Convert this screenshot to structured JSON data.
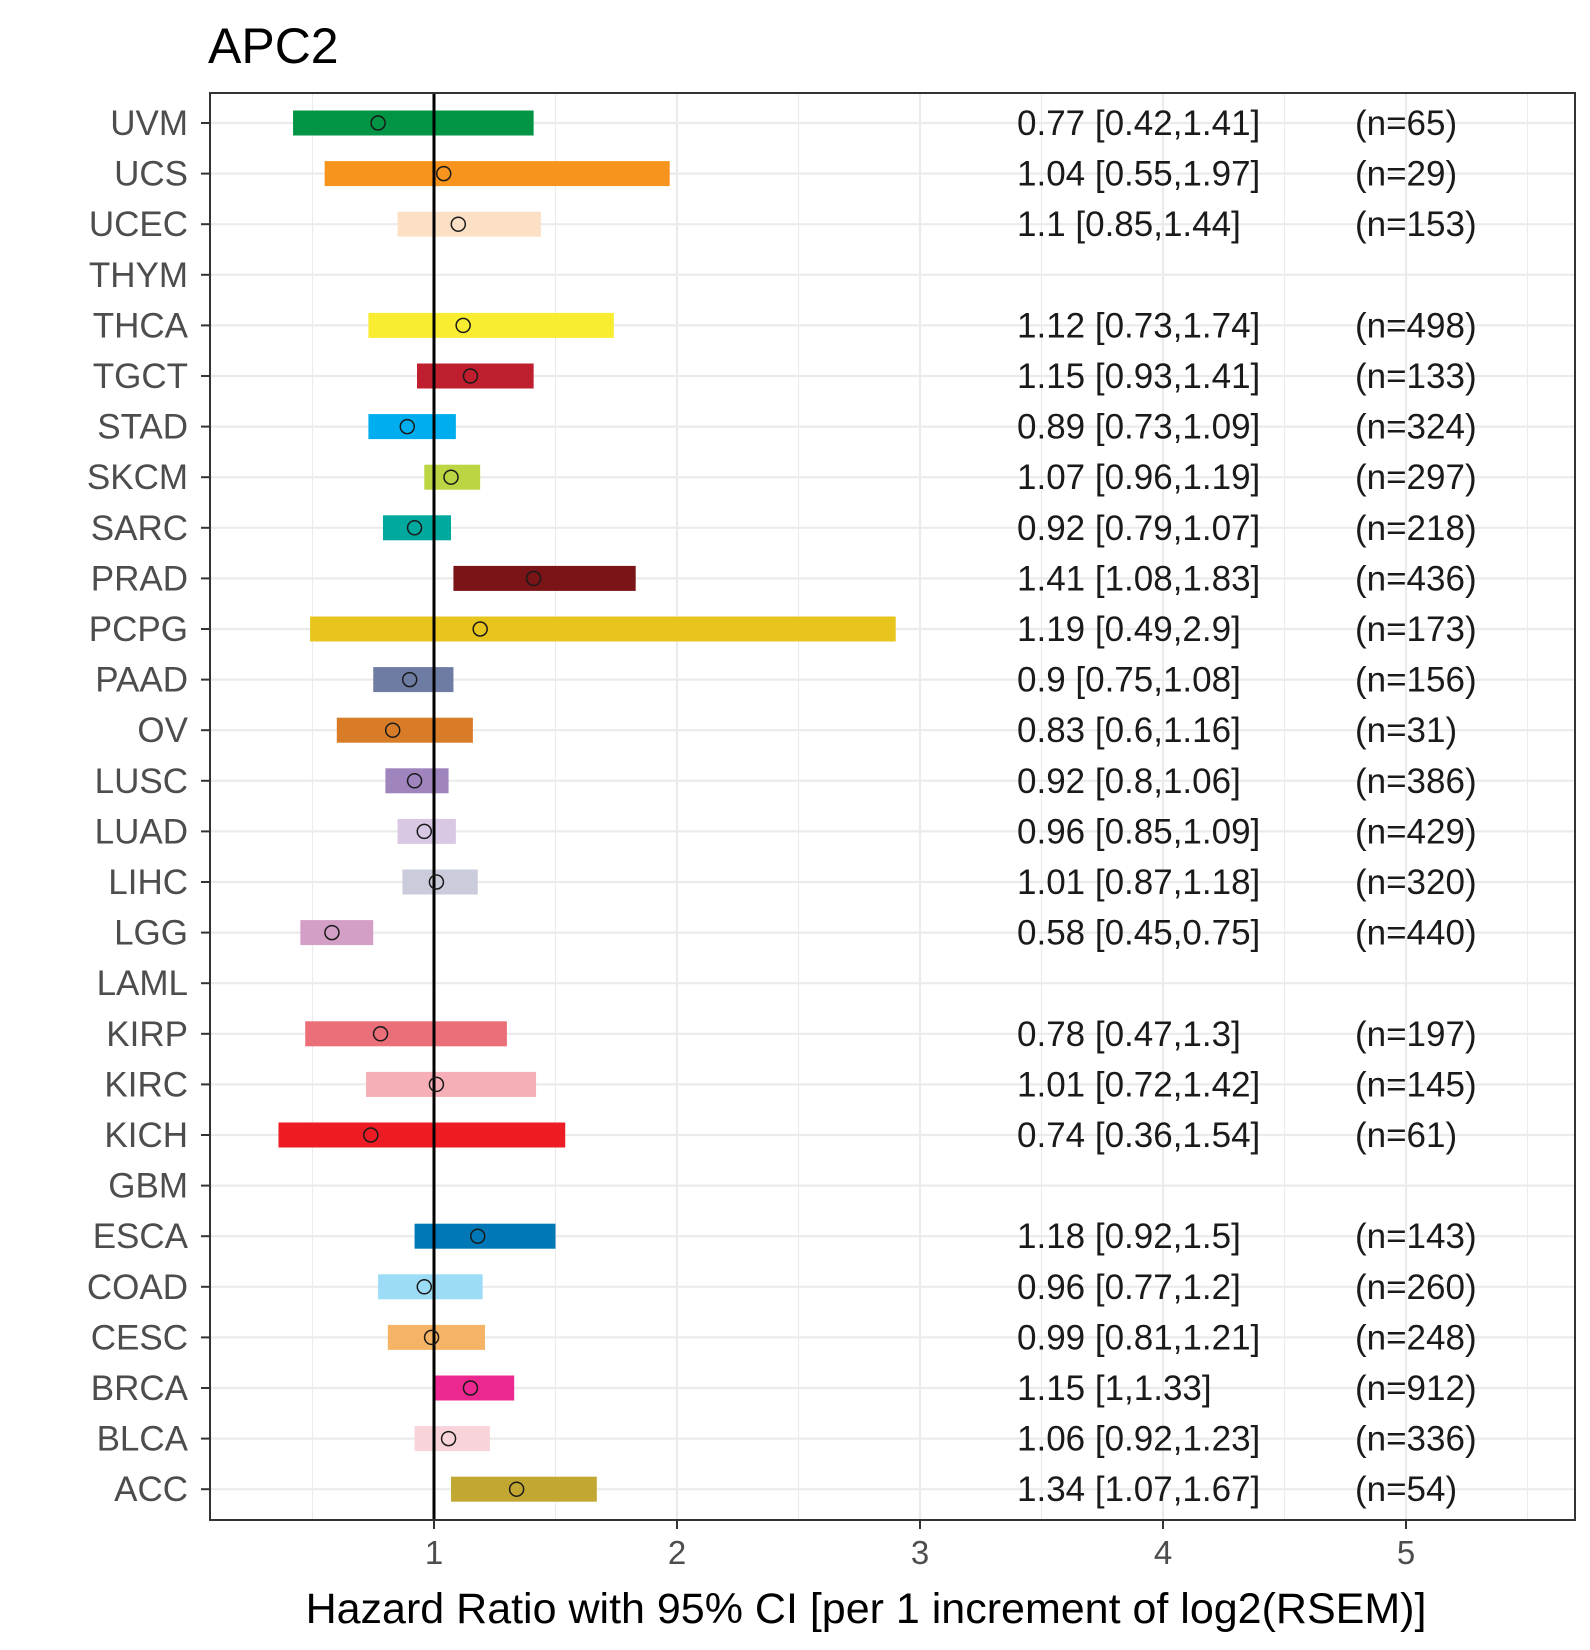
{
  "chart_data": {
    "type": "forest",
    "title": "APC2",
    "xlabel": "Hazard Ratio with 95% CI [per 1 increment of log2(RSEM)]",
    "xlim": [
      0.08,
      5.7
    ],
    "xticks": [
      1,
      2,
      3,
      4,
      5
    ],
    "grid": true,
    "reference_line": 1,
    "rows": [
      {
        "label": "UVM",
        "hr": 0.77,
        "lo": 0.42,
        "hi": 1.41,
        "text": "0.77 [0.42,1.41]",
        "n": "(n=65)",
        "color": "#009444"
      },
      {
        "label": "UCS",
        "hr": 1.04,
        "lo": 0.55,
        "hi": 1.97,
        "text": "1.04 [0.55,1.97]",
        "n": "(n=29)",
        "color": "#F7941D"
      },
      {
        "label": "UCEC",
        "hr": 1.1,
        "lo": 0.85,
        "hi": 1.44,
        "text": "1.1 [0.85,1.44]",
        "n": "(n=153)",
        "color": "#FCE0C6"
      },
      {
        "label": "THYM",
        "hr": null,
        "lo": null,
        "hi": null,
        "text": "",
        "n": "",
        "color": "#cccccc"
      },
      {
        "label": "THCA",
        "hr": 1.12,
        "lo": 0.73,
        "hi": 1.74,
        "text": "1.12 [0.73,1.74]",
        "n": "(n=498)",
        "color": "#F9ED32"
      },
      {
        "label": "TGCT",
        "hr": 1.15,
        "lo": 0.93,
        "hi": 1.41,
        "text": "1.15 [0.93,1.41]",
        "n": "(n=133)",
        "color": "#BE1E2D"
      },
      {
        "label": "STAD",
        "hr": 0.89,
        "lo": 0.73,
        "hi": 1.09,
        "text": "0.89 [0.73,1.09]",
        "n": "(n=324)",
        "color": "#00AEEF"
      },
      {
        "label": "SKCM",
        "hr": 1.07,
        "lo": 0.96,
        "hi": 1.19,
        "text": "1.07 [0.96,1.19]",
        "n": "(n=297)",
        "color": "#BBD642"
      },
      {
        "label": "SARC",
        "hr": 0.92,
        "lo": 0.79,
        "hi": 1.07,
        "text": "0.92 [0.79,1.07]",
        "n": "(n=218)",
        "color": "#00A99D"
      },
      {
        "label": "PRAD",
        "hr": 1.41,
        "lo": 1.08,
        "hi": 1.83,
        "text": "1.41 [1.08,1.83]",
        "n": "(n=436)",
        "color": "#7A1416"
      },
      {
        "label": "PCPG",
        "hr": 1.19,
        "lo": 0.49,
        "hi": 2.9,
        "text": "1.19 [0.49,2.9]",
        "n": "(n=173)",
        "color": "#E8C51D"
      },
      {
        "label": "PAAD",
        "hr": 0.9,
        "lo": 0.75,
        "hi": 1.08,
        "text": "0.9 [0.75,1.08]",
        "n": "(n=156)",
        "color": "#6E7BA2"
      },
      {
        "label": "OV",
        "hr": 0.83,
        "lo": 0.6,
        "hi": 1.16,
        "text": "0.83 [0.6,1.16]",
        "n": "(n=31)",
        "color": "#D97C28"
      },
      {
        "label": "LUSC",
        "hr": 0.92,
        "lo": 0.8,
        "hi": 1.06,
        "text": "0.92 [0.8,1.06]",
        "n": "(n=386)",
        "color": "#A084BD"
      },
      {
        "label": "LUAD",
        "hr": 0.96,
        "lo": 0.85,
        "hi": 1.09,
        "text": "0.96 [0.85,1.09]",
        "n": "(n=429)",
        "color": "#D9C8E3"
      },
      {
        "label": "LIHC",
        "hr": 1.01,
        "lo": 0.87,
        "hi": 1.18,
        "text": "1.01 [0.87,1.18]",
        "n": "(n=320)",
        "color": "#CACCDB"
      },
      {
        "label": "LGG",
        "hr": 0.58,
        "lo": 0.45,
        "hi": 0.75,
        "text": "0.58 [0.45,0.75]",
        "n": "(n=440)",
        "color": "#D49FC7"
      },
      {
        "label": "LAML",
        "hr": null,
        "lo": null,
        "hi": null,
        "text": "",
        "n": "",
        "color": "#cccccc"
      },
      {
        "label": "KIRP",
        "hr": 0.78,
        "lo": 0.47,
        "hi": 1.3,
        "text": "0.78 [0.47,1.3]",
        "n": "(n=197)",
        "color": "#EA6F79"
      },
      {
        "label": "KIRC",
        "hr": 1.01,
        "lo": 0.72,
        "hi": 1.42,
        "text": "1.01 [0.72,1.42]",
        "n": "(n=145)",
        "color": "#F6AFB7"
      },
      {
        "label": "KICH",
        "hr": 0.74,
        "lo": 0.36,
        "hi": 1.54,
        "text": "0.74 [0.36,1.54]",
        "n": "(n=61)",
        "color": "#ED1C24"
      },
      {
        "label": "GBM",
        "hr": null,
        "lo": null,
        "hi": null,
        "text": "",
        "n": "",
        "color": "#cccccc"
      },
      {
        "label": "ESCA",
        "hr": 1.18,
        "lo": 0.92,
        "hi": 1.5,
        "text": "1.18 [0.92,1.5]",
        "n": "(n=143)",
        "color": "#0077B6"
      },
      {
        "label": "COAD",
        "hr": 0.96,
        "lo": 0.77,
        "hi": 1.2,
        "text": "0.96 [0.77,1.2]",
        "n": "(n=260)",
        "color": "#9CDCF7"
      },
      {
        "label": "CESC",
        "hr": 0.99,
        "lo": 0.81,
        "hi": 1.21,
        "text": "0.99 [0.81,1.21]",
        "n": "(n=248)",
        "color": "#F5B465"
      },
      {
        "label": "BRCA",
        "hr": 1.15,
        "lo": 1.0,
        "hi": 1.33,
        "text": "1.15 [1,1.33]",
        "n": "(n=912)",
        "color": "#EC2890"
      },
      {
        "label": "BLCA",
        "hr": 1.06,
        "lo": 0.92,
        "hi": 1.23,
        "text": "1.06 [0.92,1.23]",
        "n": "(n=336)",
        "color": "#F9D3DA"
      },
      {
        "label": "ACC",
        "hr": 1.34,
        "lo": 1.07,
        "hi": 1.67,
        "text": "1.34 [1.07,1.67]",
        "n": "(n=54)",
        "color": "#C2A733"
      }
    ]
  }
}
